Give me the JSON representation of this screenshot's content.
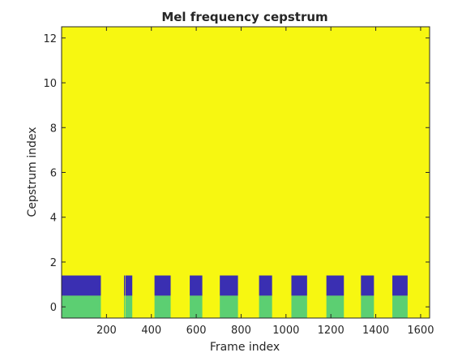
{
  "chart_data": {
    "type": "heatmap",
    "title": "Mel frequency cepstrum",
    "xlabel": "Frame index",
    "ylabel": "Cepstrum index",
    "xlim": [
      0,
      1640
    ],
    "ylim": [
      -0.5,
      12.5
    ],
    "x_ticks": [
      200,
      400,
      600,
      800,
      1000,
      1200,
      1400,
      1600
    ],
    "y_ticks": [
      0,
      2,
      4,
      6,
      8,
      10,
      12
    ],
    "grid": false,
    "colors": {
      "background_value": "#f7f711",
      "row0_band": "#5ccf72",
      "row1_band": "#3a2fb2",
      "axis": "#262626"
    },
    "rows": [
      {
        "index": 0,
        "y_range": [
          -0.5,
          0.5
        ],
        "color_key": "row0_band"
      },
      {
        "index": 1,
        "y_range": [
          0.5,
          1.4
        ],
        "color_key": "row1_band"
      }
    ],
    "frame_segments": [
      {
        "x": [
          0,
          175
        ]
      },
      {
        "x": [
          278,
          282
        ]
      },
      {
        "x": [
          284,
          315
        ]
      },
      {
        "x": [
          414,
          486
        ]
      },
      {
        "x": [
          571,
          627
        ]
      },
      {
        "x": [
          705,
          786
        ]
      },
      {
        "x": [
          880,
          938
        ]
      },
      {
        "x": [
          1024,
          1094
        ]
      },
      {
        "x": [
          1180,
          1258
        ]
      },
      {
        "x": [
          1334,
          1392
        ]
      },
      {
        "x": [
          1474,
          1542
        ]
      }
    ]
  }
}
